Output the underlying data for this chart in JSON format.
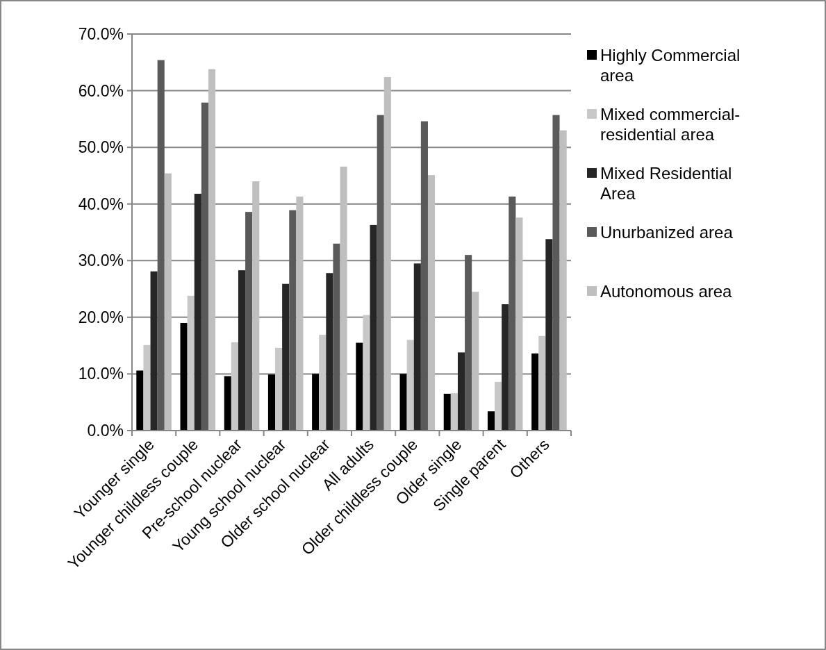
{
  "chart_data": {
    "type": "bar",
    "categories": [
      "Younger single",
      "Younger childless couple",
      "Pre-school nuclear",
      "Young school nuclear",
      "Older school nuclear",
      "All adults",
      "Older childless couple",
      "Older single",
      "Single parent",
      "Others"
    ],
    "series": [
      {
        "name": "Highly Commercial area",
        "color": "#000000",
        "values": [
          10.6,
          19.0,
          9.6,
          9.9,
          10.0,
          15.5,
          10.0,
          6.5,
          3.4,
          13.6
        ]
      },
      {
        "name": "Mixed commercial-residential area",
        "color": "#c8c8c8",
        "values": [
          15.1,
          23.8,
          15.6,
          14.6,
          16.9,
          20.4,
          16.0,
          6.6,
          8.6,
          16.7
        ]
      },
      {
        "name": "Mixed Residential Area",
        "color": "#262626",
        "values": [
          28.1,
          41.8,
          28.3,
          25.9,
          27.8,
          36.3,
          29.5,
          13.8,
          22.3,
          33.8
        ]
      },
      {
        "name": "Unurbanized area",
        "color": "#5a5a5a",
        "values": [
          65.4,
          57.9,
          38.6,
          38.9,
          33.0,
          55.7,
          54.6,
          31.0,
          41.3,
          55.7
        ]
      },
      {
        "name": "Autonomous area",
        "color": "#bfbfbf",
        "values": [
          45.4,
          63.8,
          44.0,
          41.3,
          46.6,
          62.4,
          45.1,
          24.5,
          37.6,
          53.0
        ]
      }
    ],
    "ylim": [
      0,
      70
    ],
    "yticks": [
      {
        "value": 0,
        "label": "0.0%"
      },
      {
        "value": 10,
        "label": "10.0%"
      },
      {
        "value": 20,
        "label": "20.0%"
      },
      {
        "value": 30,
        "label": "30.0%"
      },
      {
        "value": 40,
        "label": "40.0%"
      },
      {
        "value": 50,
        "label": "50.0%"
      },
      {
        "value": 60,
        "label": "60.0%"
      },
      {
        "value": 70,
        "label": "70.0%"
      }
    ],
    "grid": "y",
    "legend": "right"
  }
}
